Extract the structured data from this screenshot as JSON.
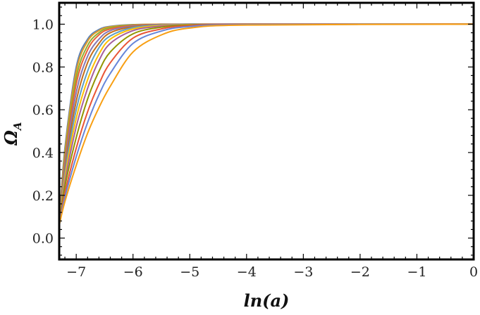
{
  "chart_data": {
    "type": "line",
    "title": "",
    "xlabel": "ln(a)",
    "ylabel": "Ω_A",
    "ylabel_main": "Ω",
    "ylabel_sub": "A",
    "xlim": [
      -7.3,
      0
    ],
    "ylim": [
      -0.1,
      1.1
    ],
    "x_ticks": [
      -7,
      -6,
      -5,
      -4,
      -3,
      -2,
      -1,
      0
    ],
    "x_tick_labels": [
      "−7",
      "−6",
      "−5",
      "−4",
      "−3",
      "−2",
      "−1",
      "0"
    ],
    "y_ticks": [
      0.0,
      0.2,
      0.4,
      0.6,
      0.8,
      1.0
    ],
    "y_tick_labels": [
      "0.0",
      "0.2",
      "0.4",
      "0.6",
      "0.8",
      "1.0"
    ],
    "grid": false,
    "legend": "none",
    "series": [
      {
        "color": "#5E81B5",
        "x": [
          -7.3,
          -7.2,
          -7.0,
          -6.8,
          -6.6,
          -6.4,
          -6.0,
          -5.5,
          -5.0,
          -4.0,
          0
        ],
        "y": [
          0.06,
          0.42,
          0.8,
          0.93,
          0.975,
          0.99,
          0.998,
          1.0,
          1.0,
          1.0,
          1.0
        ]
      },
      {
        "color": "#E19C24",
        "x": [
          -7.3,
          -7.2,
          -7.0,
          -6.8,
          -6.6,
          -6.4,
          -6.0,
          -5.5,
          -5.0,
          -4.0,
          0
        ],
        "y": [
          0.06,
          0.4,
          0.78,
          0.92,
          0.97,
          0.988,
          0.997,
          1.0,
          1.0,
          1.0,
          1.0
        ]
      },
      {
        "color": "#8FB032",
        "x": [
          -7.3,
          -7.2,
          -7.0,
          -6.8,
          -6.6,
          -6.4,
          -6.0,
          -5.5,
          -5.0,
          -4.0,
          0
        ],
        "y": [
          0.06,
          0.38,
          0.75,
          0.9,
          0.96,
          0.984,
          0.996,
          0.999,
          1.0,
          1.0,
          1.0
        ]
      },
      {
        "color": "#EB6235",
        "x": [
          -7.3,
          -7.2,
          -7.0,
          -6.8,
          -6.6,
          -6.4,
          -6.0,
          -5.5,
          -5.0,
          -4.0,
          0
        ],
        "y": [
          0.06,
          0.36,
          0.72,
          0.88,
          0.95,
          0.978,
          0.994,
          0.999,
          1.0,
          1.0,
          1.0
        ]
      },
      {
        "color": "#8778B3",
        "x": [
          -7.3,
          -7.2,
          -7.0,
          -6.8,
          -6.6,
          -6.4,
          -6.0,
          -5.5,
          -5.0,
          -4.0,
          0
        ],
        "y": [
          0.06,
          0.34,
          0.68,
          0.85,
          0.93,
          0.97,
          0.991,
          0.998,
          1.0,
          1.0,
          1.0
        ]
      },
      {
        "color": "#C56E1A",
        "x": [
          -7.3,
          -7.2,
          -7.0,
          -6.8,
          -6.6,
          -6.4,
          -6.0,
          -5.5,
          -5.0,
          -4.0,
          0
        ],
        "y": [
          0.06,
          0.32,
          0.64,
          0.82,
          0.91,
          0.96,
          0.988,
          0.997,
          0.999,
          1.0,
          1.0
        ]
      },
      {
        "color": "#5D9EC7",
        "x": [
          -7.3,
          -7.2,
          -7.0,
          -6.8,
          -6.6,
          -6.4,
          -6.0,
          -5.5,
          -5.0,
          -4.0,
          0
        ],
        "y": [
          0.06,
          0.3,
          0.6,
          0.78,
          0.89,
          0.945,
          0.984,
          0.996,
          0.999,
          1.0,
          1.0
        ]
      },
      {
        "color": "#FFBF00",
        "x": [
          -7.3,
          -7.2,
          -7.0,
          -6.8,
          -6.6,
          -6.4,
          -6.0,
          -5.5,
          -5.0,
          -4.0,
          0
        ],
        "y": [
          0.06,
          0.28,
          0.56,
          0.74,
          0.86,
          0.93,
          0.978,
          0.994,
          0.998,
          1.0,
          1.0
        ]
      },
      {
        "color": "#A5609D",
        "x": [
          -7.3,
          -7.2,
          -7.0,
          -6.8,
          -6.6,
          -6.4,
          -6.0,
          -5.5,
          -5.0,
          -4.0,
          0
        ],
        "y": [
          0.06,
          0.26,
          0.52,
          0.7,
          0.83,
          0.91,
          0.97,
          0.991,
          0.997,
          1.0,
          1.0
        ]
      },
      {
        "color": "#929600",
        "x": [
          -7.3,
          -7.2,
          -7.0,
          -6.8,
          -6.6,
          -6.4,
          -6.0,
          -5.5,
          -5.0,
          -4.0,
          0
        ],
        "y": [
          0.06,
          0.24,
          0.47,
          0.65,
          0.78,
          0.87,
          0.955,
          0.986,
          0.996,
          0.999,
          1.0
        ]
      },
      {
        "color": "#E95536",
        "x": [
          -7.3,
          -7.2,
          -7.0,
          -6.8,
          -6.6,
          -6.4,
          -6.0,
          -5.5,
          -5.0,
          -4.0,
          0
        ],
        "y": [
          0.06,
          0.21,
          0.42,
          0.59,
          0.72,
          0.82,
          0.935,
          0.978,
          0.993,
          0.999,
          1.0
        ]
      },
      {
        "color": "#6685D9",
        "x": [
          -7.3,
          -7.2,
          -7.0,
          -6.8,
          -6.6,
          -6.4,
          -6.0,
          -5.5,
          -5.0,
          -4.0,
          0
        ],
        "y": [
          0.06,
          0.19,
          0.38,
          0.54,
          0.67,
          0.77,
          0.91,
          0.968,
          0.989,
          0.998,
          1.0
        ]
      },
      {
        "color": "#F89F13",
        "x": [
          -7.3,
          -7.2,
          -7.0,
          -6.8,
          -6.6,
          -6.4,
          -6.0,
          -5.5,
          -5.0,
          -4.0,
          0
        ],
        "y": [
          0.06,
          0.17,
          0.34,
          0.49,
          0.61,
          0.71,
          0.87,
          0.95,
          0.982,
          0.996,
          1.0
        ]
      }
    ]
  }
}
